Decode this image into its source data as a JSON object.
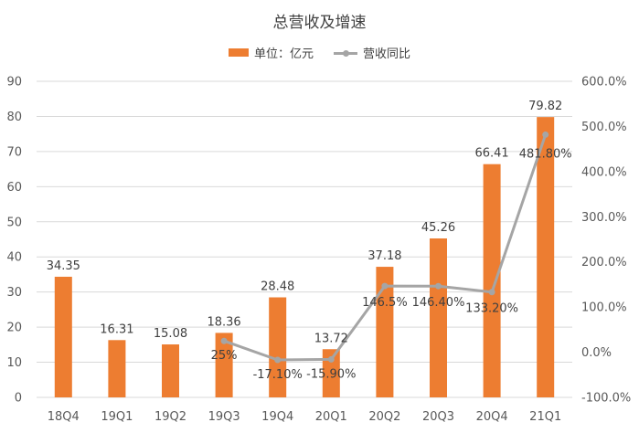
{
  "chart_data": {
    "type": "bar+line",
    "title": "总营收及增速",
    "categories": [
      "18Q4",
      "19Q1",
      "19Q2",
      "19Q3",
      "19Q4",
      "20Q1",
      "20Q2",
      "20Q3",
      "20Q4",
      "21Q1"
    ],
    "series": [
      {
        "name": "单位：亿元",
        "type": "bar",
        "axis": "left",
        "color": "#ED7D31",
        "values": [
          34.35,
          16.31,
          15.08,
          18.36,
          28.48,
          13.72,
          37.18,
          45.26,
          66.41,
          79.82
        ],
        "labels": [
          "34.35",
          "16.31",
          "15.08",
          "18.36",
          "28.48",
          "13.72",
          "37.18",
          "45.26",
          "66.41",
          "79.82"
        ]
      },
      {
        "name": "营收同比",
        "type": "line",
        "axis": "right",
        "color": "#A5A5A5",
        "values": [
          null,
          null,
          null,
          25,
          -17.1,
          -15.9,
          146.5,
          146.4,
          133.2,
          481.8
        ],
        "labels": [
          null,
          null,
          null,
          "25%",
          "-17.10%",
          "-15.90%",
          "146.5%",
          "146.40%",
          "133.20%",
          "481.80%"
        ]
      }
    ],
    "y_left": {
      "min": 0,
      "max": 90,
      "step": 10,
      "ticks": [
        "0",
        "10",
        "20",
        "30",
        "40",
        "50",
        "60",
        "70",
        "80",
        "90"
      ]
    },
    "y_right": {
      "min": -100,
      "max": 600,
      "step": 100,
      "ticks": [
        "-100.0%",
        "0.0%",
        "100.0%",
        "200.0%",
        "300.0%",
        "400.0%",
        "500.0%",
        "600.0%"
      ]
    },
    "grid": true,
    "legend_position": "top-center"
  }
}
